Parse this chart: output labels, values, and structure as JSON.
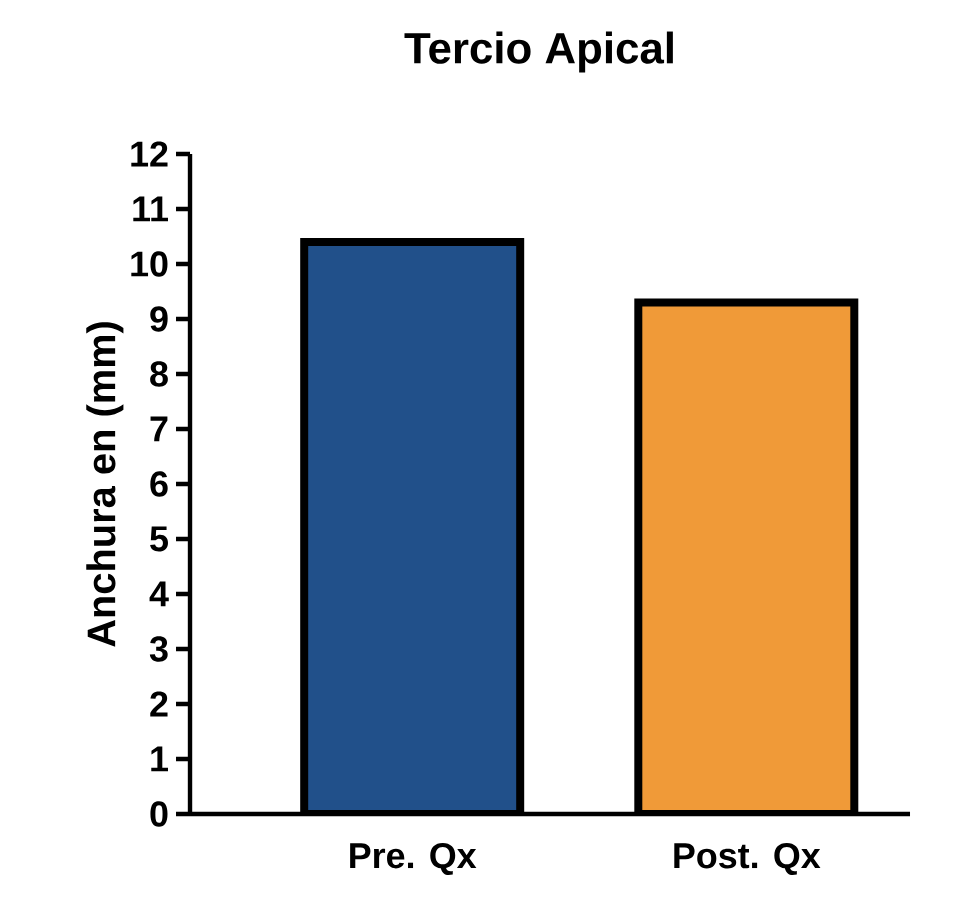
{
  "chart_data": {
    "type": "bar",
    "title": "Tercio Apical",
    "ylabel": "Anchura en (mm)",
    "categories": [
      "Pre. Qx",
      "Post. Qx"
    ],
    "values": [
      10.4,
      9.3
    ],
    "colors": [
      "#21508a",
      "#f09a38"
    ],
    "ylim": [
      0,
      12
    ],
    "yticks": [
      0,
      1,
      2,
      3,
      4,
      5,
      6,
      7,
      8,
      9,
      10,
      11,
      12
    ],
    "grid": false
  }
}
